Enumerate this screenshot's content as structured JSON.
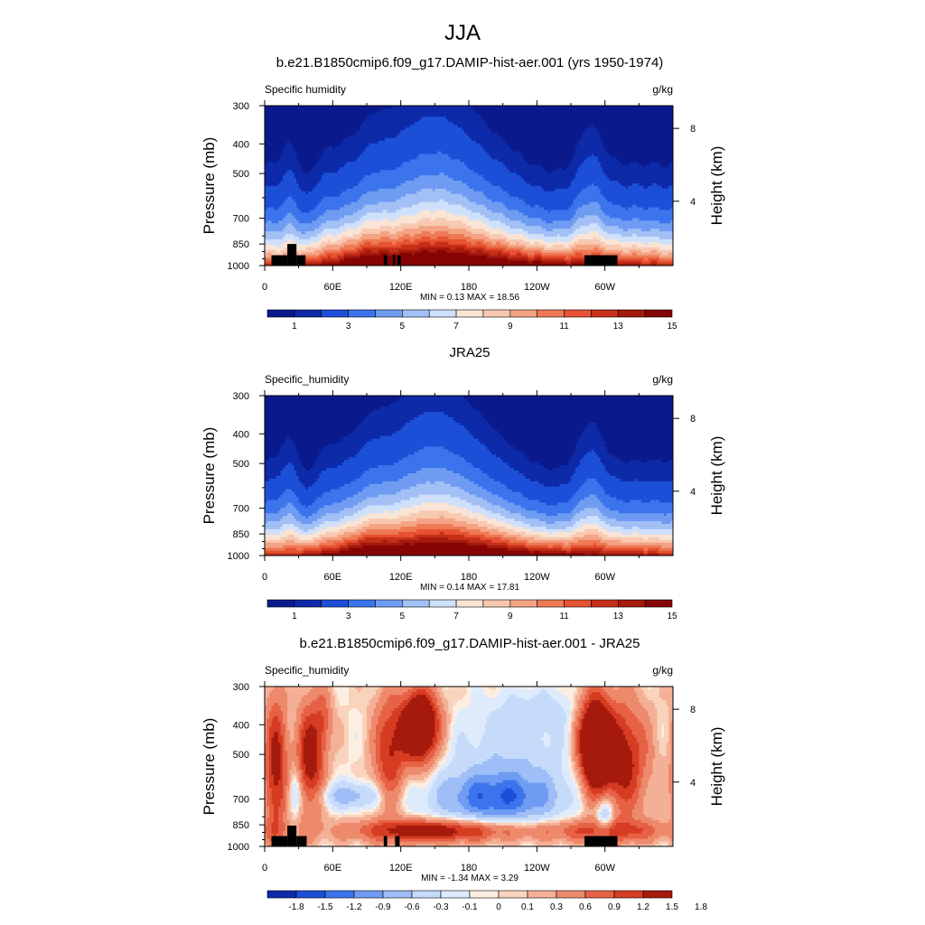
{
  "figure_title": "JJA",
  "colors": {
    "abs_palette": [
      "#0a1a8c",
      "#0d2aa8",
      "#1c4fd8",
      "#3b74ec",
      "#6f9cf2",
      "#a2c0f6",
      "#cfe0fa",
      "#f9e4d6",
      "#f8c8b0",
      "#f4a384",
      "#ee7a55",
      "#e65232",
      "#c73018",
      "#a51a0c",
      "#870404"
    ],
    "diff_palette": [
      "#0d2aa8",
      "#1c4fd8",
      "#3b74ec",
      "#6f9cf2",
      "#9fbdf6",
      "#c6dafa",
      "#deebfc",
      "#fdeee2",
      "#f9d3bc",
      "#f4b096",
      "#ee8a6c",
      "#e66145",
      "#d63c22",
      "#a51a0c"
    ],
    "topo": "#000000"
  },
  "chart_data": [
    {
      "type": "heatmap",
      "title": "b.e21.B1850cmip6.f09_g17.DAMIP-hist-aer.001 (yrs 1950-1974)",
      "left_label": "Specific humidity",
      "right_label": "g/kg",
      "ylabel": "Pressure (mb)",
      "y2label": "Height (km)",
      "pressure_ticks": [
        "300",
        "400",
        "500",
        "700",
        "850",
        "1000"
      ],
      "height_ticks": [
        "8",
        "4"
      ],
      "x_ticks": [
        "0",
        "60E",
        "120E",
        "180",
        "120W",
        "60W"
      ],
      "stats": "MIN =   0.13  MAX =  18.56",
      "colorbar_labels": [
        "1",
        "3",
        "5",
        "7",
        "9",
        "11",
        "13",
        "15"
      ],
      "levels": [
        0.5,
        1,
        2,
        3,
        4,
        5,
        6,
        7,
        8,
        9,
        10,
        11,
        12,
        13,
        14,
        15
      ],
      "xlim": [
        0,
        360
      ],
      "ylim_mb": [
        1000,
        300
      ],
      "topography": true
    },
    {
      "type": "heatmap",
      "title": "JRA25",
      "left_label": "Specific_humidity",
      "right_label": "g/kg",
      "ylabel": "Pressure (mb)",
      "y2label": "Height (km)",
      "pressure_ticks": [
        "300",
        "400",
        "500",
        "700",
        "850",
        "1000"
      ],
      "height_ticks": [
        "8",
        "4"
      ],
      "x_ticks": [
        "0",
        "60E",
        "120E",
        "180",
        "120W",
        "60W"
      ],
      "stats": "MIN =   0.14  MAX =  17.81",
      "colorbar_labels": [
        "1",
        "3",
        "5",
        "7",
        "9",
        "11",
        "13",
        "15"
      ],
      "levels": [
        0.5,
        1,
        2,
        3,
        4,
        5,
        6,
        7,
        8,
        9,
        10,
        11,
        12,
        13,
        14,
        15
      ],
      "xlim": [
        0,
        360
      ],
      "ylim_mb": [
        1000,
        300
      ],
      "topography": false
    },
    {
      "type": "heatmap",
      "title": "b.e21.B1850cmip6.f09_g17.DAMIP-hist-aer.001 - JRA25",
      "left_label": "Specific_humidity",
      "right_label": "g/kg",
      "ylabel": "Pressure (mb)",
      "y2label": "Height (km)",
      "pressure_ticks": [
        "300",
        "400",
        "500",
        "700",
        "850",
        "1000"
      ],
      "height_ticks": [
        "8",
        "4"
      ],
      "x_ticks": [
        "0",
        "60E",
        "120E",
        "180",
        "120W",
        "60W"
      ],
      "stats": "MIN =  -1.34  MAX =   3.29",
      "colorbar_labels": [
        "-1.8",
        "-1.5",
        "-1.2",
        "-0.9",
        "-0.6",
        "-0.3",
        "-0.1",
        "0",
        "0.1",
        "0.3",
        "0.6",
        "0.9",
        "1.2",
        "1.5",
        "1.8"
      ],
      "levels": [
        -1.8,
        -1.5,
        -1.2,
        -0.9,
        -0.6,
        -0.3,
        -0.1,
        0,
        0.1,
        0.3,
        0.6,
        0.9,
        1.2,
        1.5,
        1.8
      ],
      "xlim": [
        0,
        360
      ],
      "ylim_mb": [
        1000,
        300
      ],
      "topography": true
    }
  ]
}
